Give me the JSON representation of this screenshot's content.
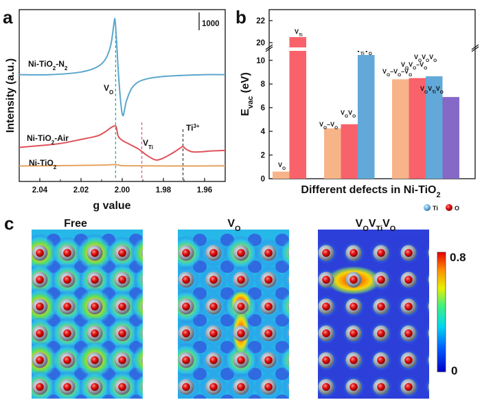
{
  "colors": {
    "n2": "#5aa6cc",
    "air": "#e0525a",
    "bare": "#e6a25e",
    "vo_line": "#3aa99a",
    "vti_line": "#d45c9e",
    "ti3_line": "#444444",
    "bar_orange": "#f7b489",
    "bar_red": "#f9626a",
    "bar_blue": "#62a8d8",
    "bar_purple": "#8668c6",
    "map_bg": "#2c46dc"
  },
  "panels": {
    "a": "a",
    "b": "b",
    "c": "c"
  },
  "chart_data": [
    {
      "type": "line",
      "panel": "a",
      "xlabel": "g value",
      "ylabel": "Intensity (a.u.)",
      "xlim": [
        2.05,
        1.95
      ],
      "x_ticks": [
        "2.04",
        "2.02",
        "2.00",
        "1.98",
        "1.96"
      ],
      "x_tick_values": [
        2.04,
        2.02,
        2.0,
        1.98,
        1.96
      ],
      "scale_bar_label": "1000",
      "series": [
        {
          "name": "Ni-TiO2-N2",
          "label_main": "Ni-TiO",
          "label_sub": "2",
          "label_suffix": "-N",
          "label_sub2": "2",
          "offset": 5400,
          "x": [
            2.05,
            2.035,
            2.02,
            2.012,
            2.008,
            2.0055,
            2.004,
            2.0035,
            2.0028,
            2.0018,
            2.0005,
            1.9995,
            1.998,
            1.995,
            1.99,
            1.98,
            1.96,
            1.95
          ],
          "y": [
            0,
            0,
            150,
            450,
            900,
            1700,
            2900,
            3100,
            2000,
            0,
            -1800,
            -2300,
            -1500,
            -700,
            -300,
            -100,
            0,
            0
          ]
        },
        {
          "name": "Ni-TiO2-Air",
          "label_main": "Ni-TiO",
          "label_sub": "2",
          "label_suffix": "-Air",
          "label_sub2": "",
          "offset": 1300,
          "x": [
            2.05,
            2.04,
            2.03,
            2.02,
            2.012,
            2.008,
            2.005,
            2.003,
            2.002,
            2.0,
            1.996,
            1.992,
            1.988,
            1.984,
            1.981,
            1.976,
            1.972,
            1.9705,
            1.969,
            1.966,
            1.962,
            1.957,
            1.95
          ],
          "y": [
            0,
            100,
            220,
            450,
            650,
            900,
            1150,
            1180,
            650,
            400,
            150,
            -100,
            -450,
            -700,
            -650,
            -350,
            -50,
            50,
            -100,
            -250,
            -250,
            -200,
            -170
          ]
        },
        {
          "name": "Ni-TiO2",
          "label_main": "Ni-TiO",
          "label_sub": "2",
          "label_suffix": "",
          "label_sub2": "",
          "offset": 250,
          "x": [
            2.05,
            2.03,
            2.01,
            2.004,
            2.002,
            2.0,
            1.99,
            1.97,
            1.95
          ],
          "y": [
            0,
            20,
            50,
            80,
            60,
            20,
            10,
            0,
            10
          ]
        }
      ],
      "annotations": [
        {
          "name": "VO",
          "main": "V",
          "sub": "O",
          "g": 2.0032
        },
        {
          "name": "VTi",
          "main": "V",
          "sub": "Ti",
          "g": 1.9905
        },
        {
          "name": "Ti3+",
          "main": "Ti",
          "sup": "3+",
          "g": 1.9705
        }
      ]
    },
    {
      "type": "bar",
      "panel": "b",
      "xlabel": "Different defects in Ni-TiO2",
      "xlabel_main": "Different defects in Ni-TiO",
      "xlabel_sub": "2",
      "ylabel_main": "E",
      "ylabel_sub": "vac",
      "ylabel_suffix": " (eV)",
      "ylim": [
        0,
        22
      ],
      "y_break": [
        10.8,
        19.5
      ],
      "y_ticks_low": [
        "0",
        "2",
        "4",
        "6",
        "8",
        "10"
      ],
      "y_ticks_high": [
        "20",
        "22"
      ],
      "groups": [
        "single",
        "double",
        "triple"
      ],
      "bars": [
        {
          "group": 0,
          "value": 0.6,
          "color": "bar_orange",
          "label": [
            [
              "V",
              ""
            ],
            [
              "O",
              "sub"
            ]
          ]
        },
        {
          "group": 0,
          "value": 20.5,
          "color": "bar_red",
          "label": [
            [
              "V",
              ""
            ],
            [
              "Ti",
              "sub"
            ]
          ]
        },
        {
          "group": 1,
          "value": 4.25,
          "color": "bar_orange",
          "label": [
            [
              "V",
              ""
            ],
            [
              "O",
              "sub"
            ],
            [
              "–V",
              ""
            ],
            [
              "O",
              "sub"
            ]
          ]
        },
        {
          "group": 1,
          "value": 4.6,
          "color": "bar_red",
          "label": [
            [
              "V",
              ""
            ],
            [
              "O",
              "sub"
            ],
            [
              "V",
              ""
            ],
            [
              "O",
              "sub"
            ]
          ]
        },
        {
          "group": 1,
          "value": 10.45,
          "color": "bar_blue",
          "label": [
            [
              "V",
              ""
            ],
            [
              "Ti",
              "sub"
            ],
            [
              "V",
              ""
            ],
            [
              "O",
              "sub"
            ]
          ]
        },
        {
          "group": 2,
          "value": 8.4,
          "color": "bar_orange",
          "label": [
            [
              "V",
              ""
            ],
            [
              "O",
              "sub"
            ],
            [
              "–V",
              ""
            ],
            [
              "O",
              "sub"
            ],
            [
              "–V",
              ""
            ],
            [
              "O",
              "sub"
            ]
          ]
        },
        {
          "group": 2,
          "value": 8.5,
          "color": "bar_red",
          "label": [
            [
              "V",
              ""
            ],
            [
              "O",
              "sub"
            ],
            [
              "V",
              ""
            ],
            [
              "O",
              "sub"
            ],
            [
              "–V",
              ""
            ],
            [
              "O",
              "sub"
            ]
          ]
        },
        {
          "group": 2,
          "value": 8.65,
          "color": "bar_blue",
          "label": [
            [
              "V",
              ""
            ],
            [
              "O",
              "sub"
            ],
            [
              "V",
              ""
            ],
            [
              "O",
              "sub"
            ],
            [
              "V",
              ""
            ],
            [
              "O",
              "sub"
            ]
          ]
        },
        {
          "group": 2,
          "value": 6.9,
          "color": "bar_purple",
          "label": [
            [
              "V",
              ""
            ],
            [
              "O",
              "sub"
            ],
            [
              "V",
              ""
            ],
            [
              "Ti",
              "sub"
            ],
            [
              "V",
              ""
            ],
            [
              "O",
              "sub"
            ]
          ]
        }
      ]
    },
    {
      "type": "heatmap",
      "panel": "c",
      "legend": {
        "ti": "Ti",
        "o": "O"
      },
      "colorbar": {
        "max": "0.8",
        "min": "0"
      },
      "maps": [
        {
          "name": "Free",
          "title_main": "Free",
          "title_parts": []
        },
        {
          "name": "VO",
          "title_main": "V",
          "title_parts": [
            [
              "O",
              "sub"
            ]
          ]
        },
        {
          "name": "VOVTiVO",
          "title_main": "V",
          "title_parts": [
            [
              "O",
              "sub"
            ],
            [
              "V",
              ""
            ],
            [
              "Ti",
              "sub"
            ],
            [
              "V",
              ""
            ],
            [
              "O",
              "sub"
            ]
          ]
        }
      ]
    }
  ]
}
